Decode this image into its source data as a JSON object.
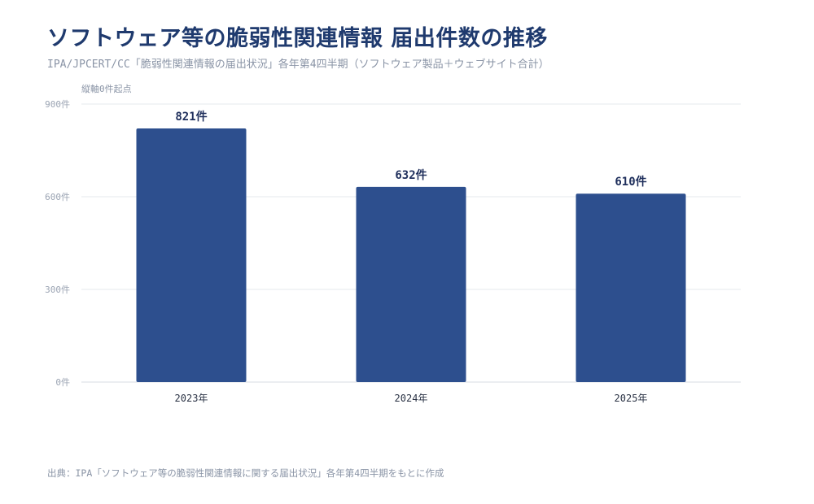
{
  "chart_data": {
    "type": "bar",
    "title": "ソフトウェア等の脆弱性関連情報 届出件数の推移",
    "subtitle": "IPA/JPCERT/CC「脆弱性関連情報の届出状況」各年第4四半期（ソフトウェア製品＋ウェブサイト合計）",
    "ylabel": "縦軸0件起点",
    "categories": [
      "2023年",
      "2024年",
      "2025年"
    ],
    "values": [
      821,
      632,
      610
    ],
    "data_labels": [
      "821件",
      "632件",
      "610件"
    ],
    "ylim": [
      0,
      900
    ],
    "yticks": [
      0,
      300,
      600,
      900
    ],
    "ytick_labels": [
      "0件",
      "300件",
      "600件",
      "900件"
    ],
    "grid": true,
    "color": "#2d4f8e",
    "source": "出典：IPA「ソフトウェア等の脆弱性関連情報に関する届出状況」各年第4四半期をもとに作成"
  }
}
